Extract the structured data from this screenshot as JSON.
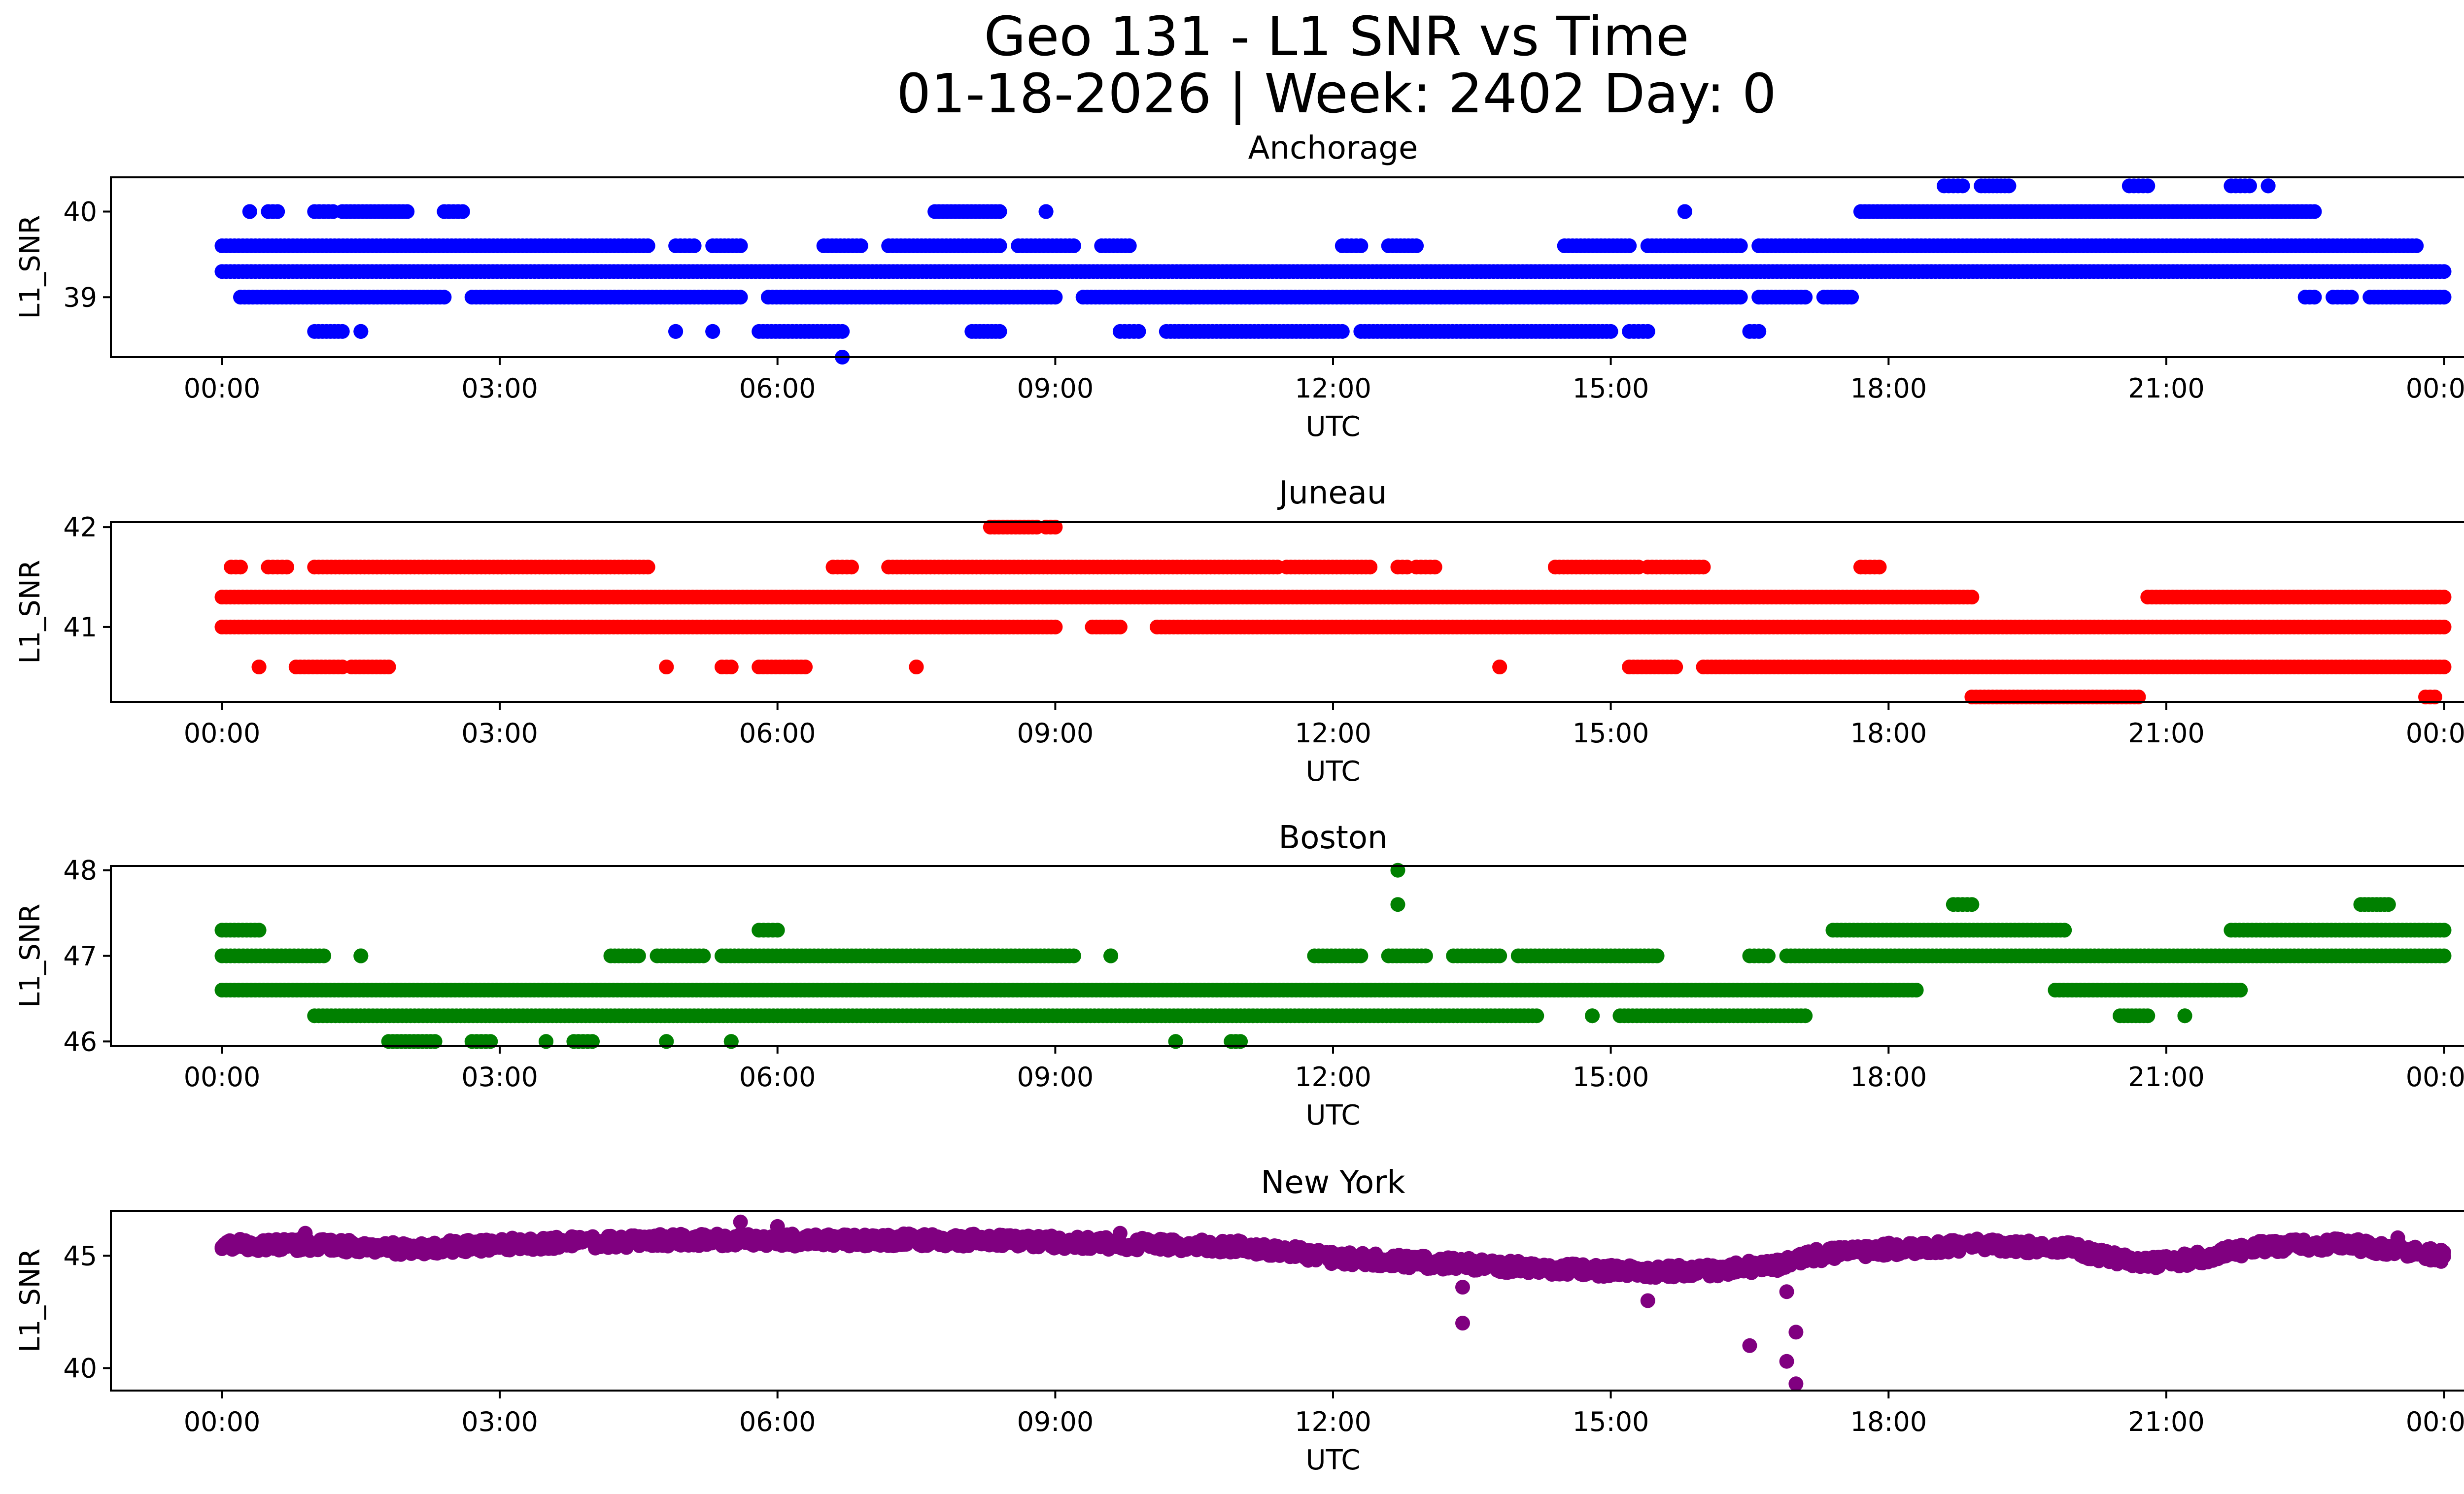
{
  "figure": {
    "title_line1": "Geo 131 - L1 SNR vs Time",
    "title_line2": "01-18-2026 | Week: 2402 Day: 0"
  },
  "chart_data": [
    {
      "type": "scatter",
      "title": "Anchorage",
      "xlabel": "UTC",
      "ylabel": "L1_SNR",
      "color": "#0000ff",
      "xlim": [
        -1.2,
        25.2
      ],
      "ylim": [
        38.3,
        40.4
      ],
      "x_ticks": [
        0,
        3,
        6,
        9,
        12,
        15,
        18,
        21,
        24
      ],
      "x_tick_labels": [
        "00:00",
        "03:00",
        "06:00",
        "09:00",
        "12:00",
        "15:00",
        "18:00",
        "21:00",
        "00:00"
      ],
      "y_ticks": [
        39,
        40
      ],
      "y_tick_labels": [
        "39",
        "40"
      ],
      "bands": [
        {
          "y": 39.3,
          "ranges": [
            [
              0.0,
              24.0
            ]
          ]
        },
        {
          "y": 39.6,
          "ranges": [
            [
              0.0,
              4.6
            ],
            [
              4.9,
              5.1
            ],
            [
              5.3,
              5.6
            ],
            [
              6.5,
              6.9
            ],
            [
              7.2,
              8.4
            ],
            [
              8.6,
              9.2
            ],
            [
              9.5,
              9.8
            ],
            [
              12.1,
              12.3
            ],
            [
              12.6,
              12.9
            ],
            [
              14.5,
              15.2
            ],
            [
              15.4,
              16.4
            ],
            [
              16.6,
              23.7
            ]
          ]
        },
        {
          "y": 39.0,
          "ranges": [
            [
              0.2,
              2.4
            ],
            [
              2.7,
              5.6
            ],
            [
              5.9,
              9.0
            ],
            [
              9.3,
              16.4
            ],
            [
              16.6,
              17.1
            ],
            [
              17.3,
              17.6
            ],
            [
              22.5,
              22.6
            ],
            [
              22.8,
              23.0
            ],
            [
              23.2,
              24.0
            ]
          ]
        },
        {
          "y": 38.6,
          "ranges": [
            [
              1.0,
              1.3
            ],
            [
              1.5,
              1.5
            ],
            [
              4.9,
              4.9
            ],
            [
              5.3,
              5.3
            ],
            [
              5.8,
              6.7
            ],
            [
              8.1,
              8.4
            ],
            [
              9.7,
              9.9
            ],
            [
              10.2,
              12.1
            ],
            [
              12.3,
              15.0
            ],
            [
              15.2,
              15.4
            ],
            [
              16.5,
              16.6
            ]
          ]
        },
        {
          "y": 40.0,
          "ranges": [
            [
              0.3,
              0.3
            ],
            [
              0.5,
              0.6
            ],
            [
              1.0,
              1.2
            ],
            [
              1.3,
              2.0
            ],
            [
              2.4,
              2.6
            ],
            [
              7.7,
              8.4
            ],
            [
              8.9,
              8.9
            ],
            [
              15.8,
              15.8
            ],
            [
              17.7,
              22.6
            ]
          ]
        },
        {
          "y": 40.3,
          "ranges": [
            [
              18.6,
              18.8
            ],
            [
              19.0,
              19.3
            ],
            [
              20.6,
              20.8
            ],
            [
              21.7,
              21.9
            ],
            [
              22.1,
              22.1
            ]
          ]
        }
      ],
      "outliers": [
        {
          "x": 6.7,
          "y": 38.3
        }
      ]
    },
    {
      "type": "scatter",
      "title": "Juneau",
      "xlabel": "UTC",
      "ylabel": "L1_SNR",
      "color": "#ff0000",
      "xlim": [
        -1.2,
        25.2
      ],
      "ylim": [
        40.25,
        42.05
      ],
      "x_ticks": [
        0,
        3,
        6,
        9,
        12,
        15,
        18,
        21,
        24
      ],
      "x_tick_labels": [
        "00:00",
        "03:00",
        "06:00",
        "09:00",
        "12:00",
        "15:00",
        "18:00",
        "21:00",
        "00:00"
      ],
      "y_ticks": [
        41,
        42
      ],
      "y_tick_labels": [
        "41",
        "42"
      ],
      "bands": [
        {
          "y": 41.3,
          "ranges": [
            [
              0.0,
              18.9
            ],
            [
              20.8,
              24.0
            ]
          ]
        },
        {
          "y": 41.0,
          "ranges": [
            [
              0.0,
              9.0
            ],
            [
              9.4,
              9.7
            ],
            [
              10.1,
              24.0
            ]
          ]
        },
        {
          "y": 41.6,
          "ranges": [
            [
              0.1,
              0.2
            ],
            [
              0.5,
              0.7
            ],
            [
              1.0,
              4.6
            ],
            [
              6.6,
              6.8
            ],
            [
              7.2,
              11.4
            ],
            [
              11.5,
              12.4
            ],
            [
              12.7,
              12.8
            ],
            [
              12.9,
              13.1
            ],
            [
              14.4,
              15.3
            ],
            [
              15.4,
              16.0
            ],
            [
              17.7,
              17.9
            ]
          ]
        },
        {
          "y": 40.6,
          "ranges": [
            [
              0.4,
              0.4
            ],
            [
              0.8,
              1.3
            ],
            [
              1.4,
              1.8
            ],
            [
              4.8,
              4.8
            ],
            [
              5.4,
              5.5
            ],
            [
              5.8,
              6.3
            ],
            [
              7.5,
              7.5
            ],
            [
              13.8,
              13.8
            ],
            [
              15.2,
              15.7
            ],
            [
              16.0,
              24.0
            ]
          ]
        },
        {
          "y": 42.0,
          "ranges": [
            [
              8.3,
              8.8
            ],
            [
              8.9,
              9.0
            ]
          ]
        },
        {
          "y": 40.3,
          "ranges": [
            [
              18.9,
              20.7
            ],
            [
              23.8,
              23.9
            ]
          ]
        }
      ],
      "outliers": [
        {
          "x": 23.9,
          "y": 41.3
        }
      ]
    },
    {
      "type": "scatter",
      "title": "Boston",
      "xlabel": "UTC",
      "ylabel": "L1_SNR",
      "color": "#008000",
      "xlim": [
        -1.2,
        25.2
      ],
      "ylim": [
        45.95,
        48.05
      ],
      "x_ticks": [
        0,
        3,
        6,
        9,
        12,
        15,
        18,
        21,
        24
      ],
      "x_tick_labels": [
        "00:00",
        "03:00",
        "06:00",
        "09:00",
        "12:00",
        "15:00",
        "18:00",
        "21:00",
        "00:00"
      ],
      "y_ticks": [
        46,
        47,
        48
      ],
      "y_tick_labels": [
        "46",
        "47",
        "48"
      ],
      "bands": [
        {
          "y": 46.6,
          "ranges": [
            [
              0.0,
              18.3
            ],
            [
              19.8,
              21.8
            ]
          ]
        },
        {
          "y": 46.3,
          "ranges": [
            [
              1.0,
              14.2
            ],
            [
              14.8,
              14.8
            ],
            [
              15.1,
              17.1
            ],
            [
              20.5,
              20.8
            ],
            [
              21.2,
              21.2
            ]
          ]
        },
        {
          "y": 47.0,
          "ranges": [
            [
              0.0,
              1.1
            ],
            [
              1.5,
              1.5
            ],
            [
              4.2,
              4.5
            ],
            [
              4.7,
              5.2
            ],
            [
              5.4,
              9.2
            ],
            [
              9.6,
              9.6
            ],
            [
              11.8,
              12.3
            ],
            [
              12.6,
              13.0
            ],
            [
              13.3,
              13.8
            ],
            [
              14.0,
              15.5
            ],
            [
              16.5,
              16.7
            ],
            [
              16.9,
              24.0
            ]
          ]
        },
        {
          "y": 47.3,
          "ranges": [
            [
              0.0,
              0.4
            ],
            [
              5.8,
              6.0
            ],
            [
              17.4,
              19.9
            ],
            [
              21.7,
              24.0
            ]
          ]
        },
        {
          "y": 46.0,
          "ranges": [
            [
              1.8,
              2.3
            ],
            [
              2.7,
              2.9
            ],
            [
              3.5,
              3.5
            ],
            [
              3.8,
              4.0
            ],
            [
              4.8,
              4.8
            ],
            [
              5.5,
              5.5
            ],
            [
              10.3,
              10.3
            ],
            [
              10.9,
              11.0
            ]
          ]
        },
        {
          "y": 47.6,
          "ranges": [
            [
              18.7,
              18.9
            ],
            [
              23.1,
              23.4
            ]
          ]
        }
      ],
      "outliers": [
        {
          "x": 12.7,
          "y": 48.0
        },
        {
          "x": 12.7,
          "y": 47.6
        }
      ]
    },
    {
      "type": "scatter",
      "title": "New York",
      "xlabel": "UTC",
      "ylabel": "L1_SNR",
      "color": "#800080",
      "xlim": [
        -1.2,
        25.2
      ],
      "ylim": [
        39.0,
        47.0
      ],
      "x_ticks": [
        0,
        3,
        6,
        9,
        12,
        15,
        18,
        21,
        24
      ],
      "x_tick_labels": [
        "00:00",
        "03:00",
        "06:00",
        "09:00",
        "12:00",
        "15:00",
        "18:00",
        "21:00",
        "00:00"
      ],
      "y_ticks": [
        40,
        45
      ],
      "y_tick_labels": [
        "40",
        "45"
      ],
      "trend": {
        "x": [
          0,
          1,
          2,
          3,
          4,
          5,
          6,
          7,
          8,
          9,
          10,
          11,
          11.5,
          12,
          13,
          14,
          15,
          16,
          16.8,
          17.2,
          18,
          19,
          20,
          20.5,
          21,
          21.5,
          22,
          23,
          24
        ],
        "y": [
          45.5,
          45.5,
          45.3,
          45.5,
          45.6,
          45.7,
          45.7,
          45.7,
          45.7,
          45.6,
          45.5,
          45.4,
          45.2,
          44.9,
          44.7,
          44.5,
          44.3,
          44.3,
          44.6,
          45.0,
          45.3,
          45.5,
          45.3,
          44.8,
          44.7,
          45.0,
          45.4,
          45.5,
          45.0
        ],
        "spread": 0.55
      },
      "outliers": [
        {
          "x": 13.4,
          "y": 43.6
        },
        {
          "x": 13.4,
          "y": 42.0
        },
        {
          "x": 15.4,
          "y": 43.0
        },
        {
          "x": 16.5,
          "y": 41.0
        },
        {
          "x": 16.9,
          "y": 40.3
        },
        {
          "x": 17.0,
          "y": 41.6
        },
        {
          "x": 17.0,
          "y": 39.3
        },
        {
          "x": 16.9,
          "y": 43.4
        },
        {
          "x": 5.6,
          "y": 46.5
        },
        {
          "x": 6.0,
          "y": 46.3
        },
        {
          "x": 0.9,
          "y": 46.0
        },
        {
          "x": 9.7,
          "y": 46.0
        },
        {
          "x": 23.5,
          "y": 45.8
        }
      ]
    }
  ]
}
